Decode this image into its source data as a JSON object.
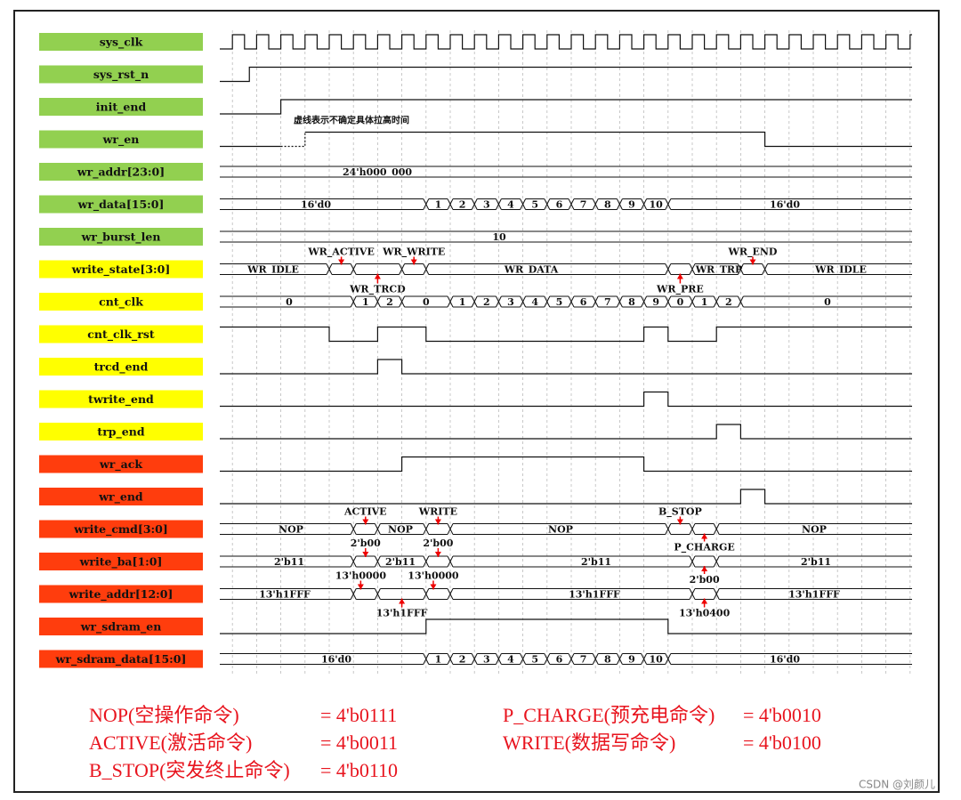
{
  "signals": [
    "sys_clk",
    "sys_rst_n",
    "init_end",
    "wr_en",
    "wr_addr[23:0]",
    "wr_data[15:0]",
    "wr_burst_len",
    "write_state[3:0]",
    "cnt_clk",
    "cnt_clk_rst",
    "trcd_end",
    "twrite_end",
    "trp_end",
    "wr_ack",
    "wr_end",
    "write_cmd[3:0]",
    "write_ba[1:0]",
    "write_addr[12:0]",
    "wr_sdram_en",
    "wr_sdram_data[15:0]"
  ],
  "note": "虚线表示不确定具体拉高时间",
  "wr_addr": "24'h000_000",
  "wr_data": [
    "16'd0",
    "1",
    "2",
    "3",
    "4",
    "5",
    "6",
    "7",
    "8",
    "9",
    "10",
    "16'd0"
  ],
  "wr_burst_len": "10",
  "write_state": [
    "WR_IDLE",
    "WR_ACTIVE",
    "WR_WRITE",
    "WR_TRCD",
    "WR_DATA",
    "WR_PRE",
    "WR_TRP",
    "WR_END",
    "WR_IDLE"
  ],
  "cnt_clk": [
    "0",
    "1",
    "2",
    "0",
    "1",
    "2",
    "3",
    "4",
    "5",
    "6",
    "7",
    "8",
    "9",
    "0",
    "1",
    "2",
    "0"
  ],
  "write_cmd": [
    "NOP",
    "ACTIVE",
    "NOP",
    "WRITE",
    "NOP",
    "B_STOP",
    "P_CHARGE",
    "NOP"
  ],
  "write_ba": [
    "2'b11",
    "2'b00",
    "2'b11",
    "2'b00",
    "2'b11",
    "2'b00",
    "2'b11"
  ],
  "write_addr": [
    "13'h1FFF",
    "13'h0000",
    "13'h1FFF",
    "13'h0000",
    "13'h1FFF",
    "13'h0400",
    "13'h1FFF"
  ],
  "wr_sdram_data": [
    "16'd0",
    "1",
    "2",
    "3",
    "4",
    "5",
    "6",
    "7",
    "8",
    "9",
    "10",
    "16'd0"
  ],
  "legend": [
    [
      "NOP(空操作命令)",
      "= 4'b0111"
    ],
    [
      "ACTIVE(激活命令)",
      "= 4'b0011"
    ],
    [
      "B_STOP(突发终止命令)",
      "= 4'b0110"
    ],
    [
      "P_CHARGE(预充电命令)",
      "= 4'b0010"
    ],
    [
      "WRITE(数据写命令)",
      "= 4'b0100"
    ]
  ],
  "watermark": "CSDN @刘颜儿"
}
